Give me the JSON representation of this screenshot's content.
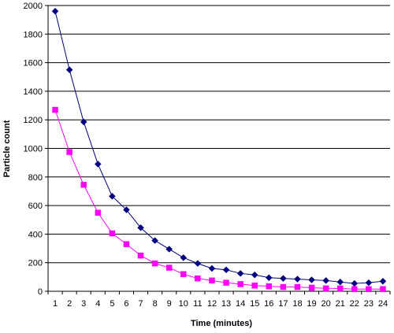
{
  "chart_data": {
    "type": "line",
    "title": "",
    "xlabel": "Time (minutes)",
    "ylabel": "Particle count",
    "x": [
      1,
      2,
      3,
      4,
      5,
      6,
      7,
      8,
      9,
      10,
      11,
      12,
      13,
      14,
      15,
      16,
      17,
      18,
      19,
      20,
      21,
      22,
      23,
      24
    ],
    "ylim": [
      0,
      2000
    ],
    "yticks": [
      0,
      200,
      400,
      600,
      800,
      1000,
      1200,
      1400,
      1600,
      1800,
      2000
    ],
    "grid": "horizontal",
    "legend": "none",
    "series": [
      {
        "color": "#000080",
        "marker": "diamond",
        "values": [
          1960,
          1550,
          1185,
          890,
          665,
          570,
          445,
          355,
          295,
          235,
          195,
          160,
          150,
          125,
          115,
          95,
          90,
          85,
          80,
          75,
          65,
          55,
          60,
          70
        ]
      },
      {
        "color": "#FF00FF",
        "marker": "square",
        "values": [
          1270,
          975,
          745,
          550,
          405,
          330,
          250,
          195,
          165,
          120,
          90,
          75,
          60,
          50,
          40,
          35,
          30,
          30,
          25,
          20,
          20,
          15,
          15,
          15
        ]
      }
    ]
  }
}
